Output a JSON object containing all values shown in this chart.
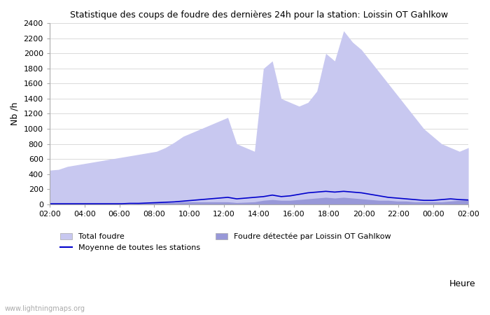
{
  "title": "Statistique des coups de foudre des dernières 24h pour la station: Loissin OT Gahlkow",
  "ylabel": "Nb /h",
  "xlabel_right": "Heure",
  "watermark": "www.lightningmaps.org",
  "xlim": [
    0,
    48
  ],
  "ylim": [
    0,
    2400
  ],
  "yticks": [
    0,
    200,
    400,
    600,
    800,
    1000,
    1200,
    1400,
    1600,
    1800,
    2000,
    2200,
    2400
  ],
  "xtick_labels": [
    "02:00",
    "04:00",
    "06:00",
    "08:00",
    "10:00",
    "12:00",
    "14:00",
    "16:00",
    "18:00",
    "20:00",
    "22:00",
    "00:00",
    "02:00"
  ],
  "xtick_positions": [
    0,
    4,
    8,
    12,
    16,
    20,
    24,
    28,
    32,
    36,
    40,
    44,
    48
  ],
  "color_total": "#c8c8f0",
  "color_local": "#9898d8",
  "color_moyenne": "#0000cc",
  "legend_items": [
    {
      "label": "Total foudre",
      "color": "#c8c8f0",
      "type": "fill"
    },
    {
      "label": "Moyenne de toutes les stations",
      "color": "#0000cc",
      "type": "line"
    },
    {
      "label": "Foudre détectée par Loissin OT Gahlkow",
      "color": "#9898d8",
      "type": "fill"
    }
  ],
  "total_foudre": [
    450,
    460,
    500,
    520,
    540,
    560,
    580,
    600,
    620,
    640,
    660,
    680,
    700,
    750,
    820,
    900,
    950,
    1000,
    1050,
    1100,
    1150,
    800,
    750,
    700,
    1800,
    1900,
    1400,
    1350,
    1300,
    1350,
    1500,
    2000,
    1900,
    2300,
    2150,
    2050,
    1900,
    1750,
    1600,
    1450,
    1300,
    1150,
    1000,
    900,
    800,
    750,
    700,
    750
  ],
  "local_foudre": [
    0,
    0,
    0,
    0,
    0,
    0,
    0,
    0,
    0,
    5,
    10,
    15,
    20,
    20,
    20,
    30,
    30,
    30,
    30,
    30,
    30,
    20,
    25,
    30,
    50,
    60,
    50,
    50,
    60,
    70,
    80,
    90,
    80,
    90,
    80,
    70,
    60,
    50,
    50,
    40,
    40,
    30,
    30,
    30,
    30,
    40,
    50,
    60
  ],
  "moyenne": [
    5,
    5,
    5,
    5,
    5,
    5,
    5,
    5,
    5,
    10,
    10,
    15,
    20,
    25,
    30,
    40,
    50,
    60,
    70,
    80,
    90,
    70,
    80,
    90,
    100,
    120,
    100,
    110,
    130,
    150,
    160,
    170,
    160,
    170,
    160,
    150,
    130,
    110,
    90,
    80,
    70,
    60,
    50,
    50,
    60,
    70,
    60,
    55
  ]
}
